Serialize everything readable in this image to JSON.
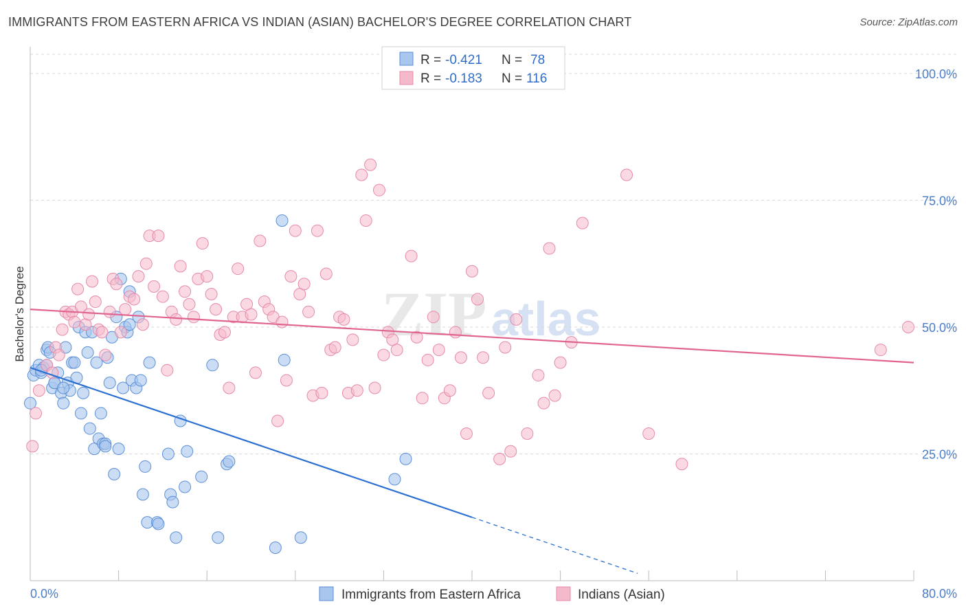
{
  "header": {
    "title": "IMMIGRANTS FROM EASTERN AFRICA VS INDIAN (ASIAN) BACHELOR'S DEGREE CORRELATION CHART",
    "source": "Source: ZipAtlas.com"
  },
  "watermark": {
    "zip": "ZIP",
    "atlas": "atlas"
  },
  "legend": {
    "rows": [
      {
        "r_label": "R =",
        "r_value": "-0.421",
        "n_label": "N =",
        "n_value": "78"
      },
      {
        "r_label": "R =",
        "r_value": "-0.183",
        "n_label": "N =",
        "n_value": "116"
      }
    ]
  },
  "bottom_legend": {
    "items": [
      "Immigrants from Eastern Africa",
      "Indians (Asian)"
    ]
  },
  "colors": {
    "blue_fill": "#a9c6ef",
    "blue_stroke": "#5b8fd6",
    "blue_line": "#2a6fd1",
    "pink_fill": "#f5b9cc",
    "pink_stroke": "#e58aa9",
    "pink_line": "#e0648f",
    "tick_text": "#4a7cc7",
    "grid": "#d9d9d9"
  },
  "chart_data": {
    "type": "scatter",
    "title": "IMMIGRANTS FROM EASTERN AFRICA VS INDIAN (ASIAN) BACHELOR'S DEGREE CORRELATION CHART",
    "xlabel": "",
    "ylabel": "Bachelor's Degree",
    "xlim": [
      0,
      80
    ],
    "ylim": [
      0,
      105
    ],
    "x_tick_labels": [
      "0.0%",
      "80.0%"
    ],
    "y_ticks": [
      25,
      50,
      75,
      100
    ],
    "y_tick_labels": [
      "25.0%",
      "50.0%",
      "75.0%",
      "100.0%"
    ],
    "grid": true,
    "legend_position": "top-center",
    "series": [
      {
        "name": "Immigrants from Eastern Africa",
        "r": -0.421,
        "n": 78,
        "trend": {
          "x0": 0,
          "y0": 42,
          "x1": 40,
          "y1": 12.5,
          "dashed_to_x": 55
        },
        "points": [
          [
            0.3,
            40.5
          ],
          [
            0.5,
            41.5
          ],
          [
            0.8,
            42.5
          ],
          [
            1.0,
            41.0
          ],
          [
            1.2,
            42.0
          ],
          [
            1.5,
            45.5
          ],
          [
            1.6,
            46.0
          ],
          [
            1.8,
            45.0
          ],
          [
            1.5,
            42.5
          ],
          [
            2.0,
            38.0
          ],
          [
            2.2,
            39.0
          ],
          [
            2.5,
            41.0
          ],
          [
            2.8,
            37.0
          ],
          [
            3.0,
            35.0
          ],
          [
            3.2,
            46.0
          ],
          [
            3.4,
            39.0
          ],
          [
            3.6,
            37.5
          ],
          [
            3.8,
            43.0
          ],
          [
            4.0,
            43.0
          ],
          [
            4.2,
            40.0
          ],
          [
            4.4,
            50.0
          ],
          [
            4.6,
            33.0
          ],
          [
            4.8,
            37.0
          ],
          [
            5.0,
            49.0
          ],
          [
            5.2,
            45.0
          ],
          [
            5.4,
            30.0
          ],
          [
            5.6,
            49.0
          ],
          [
            5.8,
            26.0
          ],
          [
            6.0,
            43.0
          ],
          [
            6.2,
            28.0
          ],
          [
            6.4,
            33.0
          ],
          [
            6.6,
            27.0
          ],
          [
            6.8,
            27.0
          ],
          [
            7.0,
            44.0
          ],
          [
            7.2,
            39.0
          ],
          [
            7.4,
            48.0
          ],
          [
            7.6,
            21.0
          ],
          [
            7.8,
            52.0
          ],
          [
            8.0,
            26.0
          ],
          [
            8.2,
            59.5
          ],
          [
            8.4,
            38.0
          ],
          [
            8.6,
            50.0
          ],
          [
            8.8,
            49.0
          ],
          [
            9.0,
            57.0
          ],
          [
            9.2,
            39.5
          ],
          [
            9.6,
            38.0
          ],
          [
            9.8,
            52.0
          ],
          [
            10.0,
            39.5
          ],
          [
            10.2,
            17.0
          ],
          [
            10.4,
            22.5
          ],
          [
            10.6,
            11.5
          ],
          [
            10.8,
            43.0
          ],
          [
            11.5,
            11.5
          ],
          [
            12.5,
            25.0
          ],
          [
            12.7,
            17.0
          ],
          [
            12.9,
            15.5
          ],
          [
            13.2,
            8.5
          ],
          [
            13.6,
            31.5
          ],
          [
            14.0,
            18.5
          ],
          [
            14.2,
            25.5
          ],
          [
            15.5,
            20.5
          ],
          [
            16.5,
            42.5
          ],
          [
            17.0,
            8.5
          ],
          [
            17.8,
            23.0
          ],
          [
            18.0,
            23.5
          ],
          [
            22.8,
            71.0
          ],
          [
            23.0,
            43.5
          ],
          [
            22.2,
            6.5
          ],
          [
            24.5,
            8.5
          ],
          [
            33.0,
            20.0
          ],
          [
            34.0,
            24.0
          ],
          [
            0.0,
            35.0
          ],
          [
            1.0,
            41.5
          ],
          [
            2.2,
            39.0
          ],
          [
            3.0,
            38.0
          ],
          [
            6.8,
            26.5
          ],
          [
            9.0,
            50.5
          ],
          [
            11.6,
            11.2
          ]
        ]
      },
      {
        "name": "Indians (Asian)",
        "r": -0.183,
        "n": 116,
        "trend": {
          "x0": 0,
          "y0": 53.5,
          "x1": 80,
          "y1": 43.0
        },
        "points": [
          [
            0.2,
            26.5
          ],
          [
            0.5,
            33.0
          ],
          [
            0.8,
            37.5
          ],
          [
            1.5,
            42.5
          ],
          [
            2.0,
            41.0
          ],
          [
            2.3,
            46.0
          ],
          [
            2.6,
            44.5
          ],
          [
            2.9,
            49.5
          ],
          [
            3.2,
            53.0
          ],
          [
            3.5,
            52.5
          ],
          [
            3.8,
            53.0
          ],
          [
            4.0,
            51.0
          ],
          [
            4.3,
            57.5
          ],
          [
            4.6,
            54.0
          ],
          [
            5.0,
            50.5
          ],
          [
            5.3,
            52.5
          ],
          [
            5.6,
            59.0
          ],
          [
            5.9,
            55.0
          ],
          [
            6.2,
            49.5
          ],
          [
            6.5,
            49.0
          ],
          [
            6.8,
            44.5
          ],
          [
            7.2,
            53.0
          ],
          [
            7.5,
            59.5
          ],
          [
            7.8,
            58.5
          ],
          [
            8.2,
            49.0
          ],
          [
            8.6,
            53.5
          ],
          [
            9.0,
            56.0
          ],
          [
            9.4,
            55.5
          ],
          [
            9.8,
            60.0
          ],
          [
            10.2,
            50.5
          ],
          [
            10.5,
            62.5
          ],
          [
            10.8,
            68.0
          ],
          [
            11.2,
            58.0
          ],
          [
            11.6,
            68.0
          ],
          [
            12.0,
            56.0
          ],
          [
            12.4,
            41.5
          ],
          [
            12.8,
            53.0
          ],
          [
            13.2,
            51.5
          ],
          [
            13.6,
            62.0
          ],
          [
            14.0,
            57.0
          ],
          [
            14.4,
            54.5
          ],
          [
            14.8,
            52.0
          ],
          [
            15.2,
            59.5
          ],
          [
            15.6,
            66.5
          ],
          [
            16.0,
            60.0
          ],
          [
            16.4,
            56.5
          ],
          [
            16.8,
            53.5
          ],
          [
            17.2,
            48.5
          ],
          [
            17.6,
            49.0
          ],
          [
            18.0,
            38.0
          ],
          [
            18.4,
            52.0
          ],
          [
            18.8,
            61.5
          ],
          [
            19.2,
            52.0
          ],
          [
            19.6,
            54.5
          ],
          [
            20.0,
            52.5
          ],
          [
            20.4,
            41.0
          ],
          [
            20.8,
            67.0
          ],
          [
            21.2,
            55.0
          ],
          [
            21.6,
            53.5
          ],
          [
            22.0,
            52.0
          ],
          [
            22.4,
            31.5
          ],
          [
            22.8,
            51.0
          ],
          [
            23.2,
            39.5
          ],
          [
            23.6,
            60.0
          ],
          [
            24.0,
            69.0
          ],
          [
            24.4,
            56.5
          ],
          [
            24.8,
            58.5
          ],
          [
            25.2,
            53.0
          ],
          [
            25.6,
            36.5
          ],
          [
            26.0,
            69.0
          ],
          [
            26.4,
            37.0
          ],
          [
            26.8,
            60.5
          ],
          [
            27.2,
            45.5
          ],
          [
            27.6,
            46.0
          ],
          [
            28.0,
            52.0
          ],
          [
            28.4,
            51.5
          ],
          [
            28.8,
            37.0
          ],
          [
            29.2,
            47.5
          ],
          [
            29.6,
            37.5
          ],
          [
            30.0,
            80.0
          ],
          [
            30.4,
            71.0
          ],
          [
            30.8,
            82.0
          ],
          [
            31.2,
            38.0
          ],
          [
            31.6,
            77.0
          ],
          [
            32.0,
            44.5
          ],
          [
            32.4,
            49.0
          ],
          [
            32.8,
            47.5
          ],
          [
            33.2,
            45.5
          ],
          [
            34.5,
            64.0
          ],
          [
            35.0,
            48.0
          ],
          [
            35.5,
            36.0
          ],
          [
            36.0,
            43.5
          ],
          [
            36.5,
            52.0
          ],
          [
            37.0,
            45.5
          ],
          [
            37.5,
            36.0
          ],
          [
            38.0,
            37.5
          ],
          [
            38.5,
            49.0
          ],
          [
            39.0,
            44.0
          ],
          [
            39.5,
            29.0
          ],
          [
            40.0,
            61.0
          ],
          [
            40.5,
            55.5
          ],
          [
            41.0,
            44.0
          ],
          [
            41.5,
            37.0
          ],
          [
            42.5,
            24.0
          ],
          [
            43.0,
            46.0
          ],
          [
            43.5,
            25.5
          ],
          [
            44.0,
            51.5
          ],
          [
            45.0,
            29.0
          ],
          [
            46.0,
            40.5
          ],
          [
            46.5,
            35.0
          ],
          [
            47.0,
            65.5
          ],
          [
            47.5,
            36.5
          ],
          [
            48.0,
            43.0
          ],
          [
            49.0,
            47.0
          ],
          [
            50.0,
            70.5
          ],
          [
            54.0,
            80.0
          ],
          [
            56.0,
            29.0
          ],
          [
            59.0,
            23.0
          ],
          [
            77.0,
            45.5
          ],
          [
            79.5,
            50.0
          ]
        ]
      }
    ]
  }
}
